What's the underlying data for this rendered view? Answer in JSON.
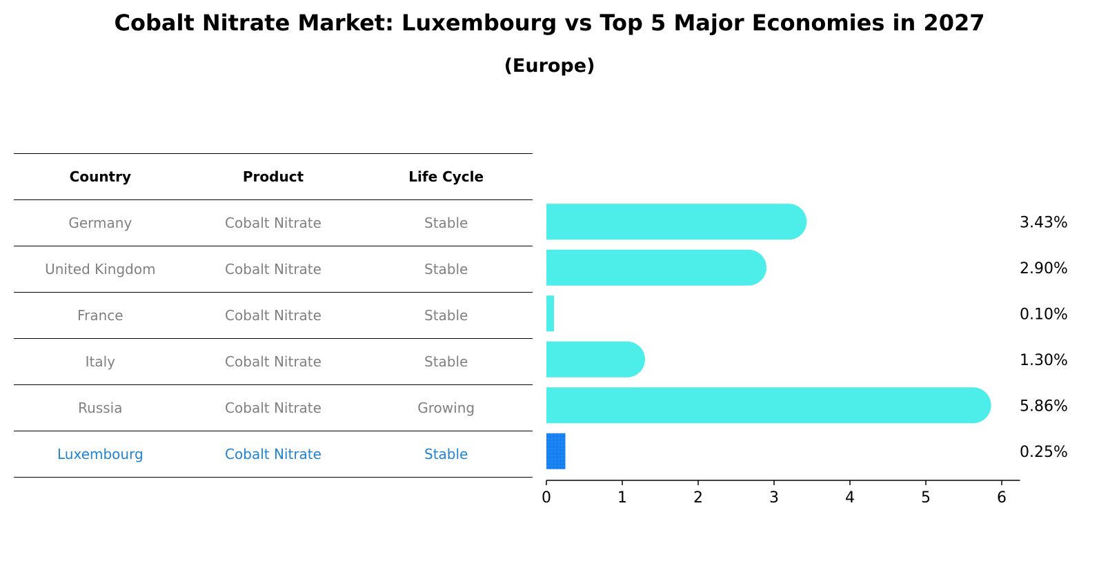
{
  "title": "Cobalt Nitrate Market: Luxembourg vs Top 5 Major Economies in 2027",
  "subtitle": "(Europe)",
  "table": {
    "headers": [
      "Country",
      "Product",
      "Life Cycle"
    ],
    "rows": [
      [
        "Germany",
        "Cobalt Nitrate",
        "Stable"
      ],
      [
        "United Kingdom",
        "Cobalt Nitrate",
        "Stable"
      ],
      [
        "France",
        "Cobalt Nitrate",
        "Stable"
      ],
      [
        "Italy",
        "Cobalt Nitrate",
        "Stable"
      ],
      [
        "Russia",
        "Cobalt Nitrate",
        "Growing"
      ],
      [
        "Luxembourg",
        "Cobalt Nitrate",
        "Stable"
      ]
    ],
    "highlight_row": 5,
    "highlight_color": "#1f83d6",
    "text_color": "#808080"
  },
  "chart_data": {
    "type": "bar",
    "orientation": "horizontal",
    "categories": [
      "Germany",
      "United Kingdom",
      "France",
      "Italy",
      "Russia",
      "Luxembourg"
    ],
    "values": [
      3.43,
      2.9,
      0.1,
      1.3,
      5.86,
      0.25
    ],
    "value_labels": [
      "3.43%",
      "2.90%",
      "0.10%",
      "1.30%",
      "5.86%",
      "0.25%"
    ],
    "xlim": [
      0,
      6.15
    ],
    "xticks": [
      "0",
      "1",
      "2",
      "3",
      "4",
      "5",
      "6"
    ],
    "bar_color": "#4deeea",
    "highlight_color": "#1a85f5",
    "highlight_index": 5,
    "grid": false
  }
}
